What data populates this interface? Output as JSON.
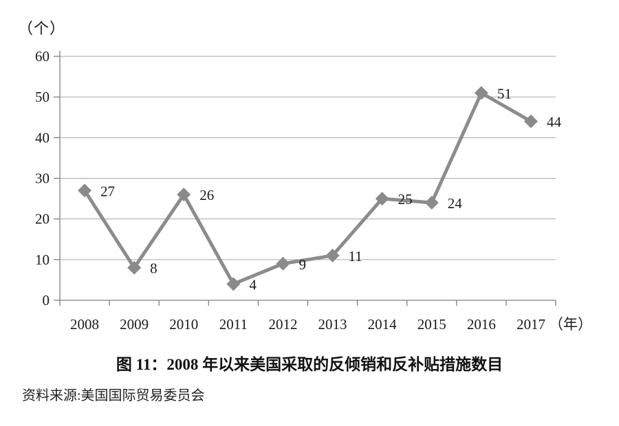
{
  "y_unit": "（个）",
  "x_unit": "（年）",
  "title": "图 11：2008 年以来美国采取的反倾销和反补贴措施数目",
  "source": "资料来源:美国国际贸易委员会",
  "colors": {
    "series_line": "#8c8c8c",
    "marker": "#8a8a8a",
    "gridline": "#a6a6a6",
    "axis": "#7f7f7f",
    "text": "#1a1a1a"
  },
  "chart_data": {
    "type": "line",
    "title": "图 11：2008 年以来美国采取的反倾销和反补贴措施数目",
    "categories": [
      "2008",
      "2009",
      "2010",
      "2011",
      "2012",
      "2013",
      "2014",
      "2015",
      "2016",
      "2017"
    ],
    "values": [
      27,
      8,
      26,
      4,
      9,
      11,
      25,
      24,
      51,
      44
    ],
    "xlabel": "（年）",
    "ylabel": "（个）",
    "ylim": [
      0,
      60
    ],
    "yticks": [
      0,
      10,
      20,
      30,
      40,
      50,
      60
    ],
    "grid": true,
    "marker": "diamond",
    "data_labels": true,
    "legend_position": "none"
  }
}
